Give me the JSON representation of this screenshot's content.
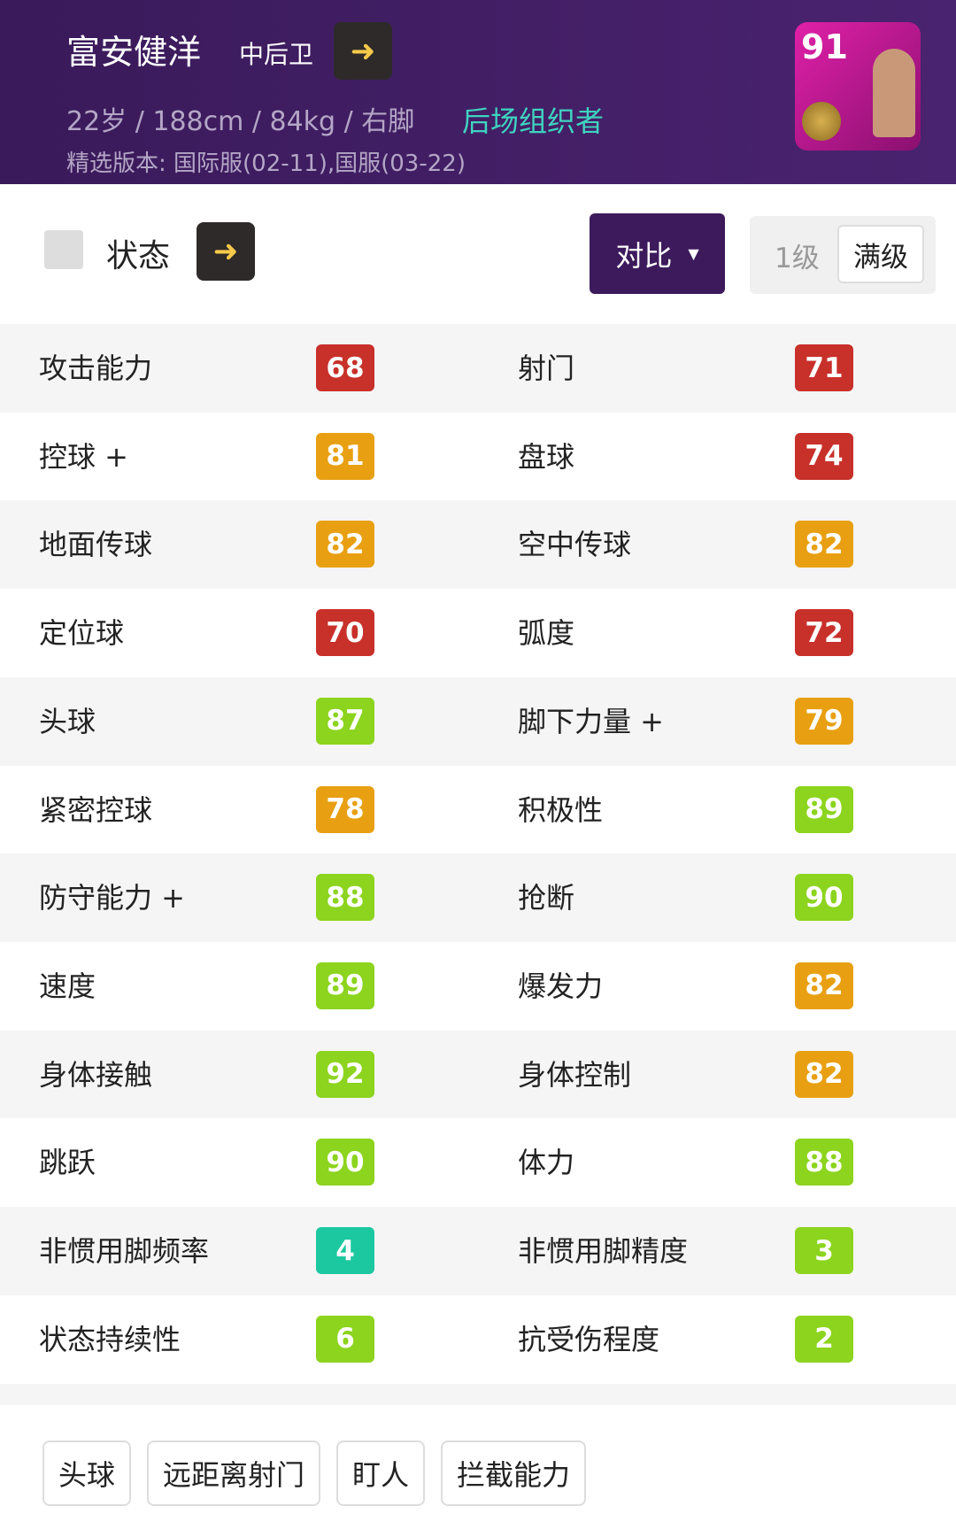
{
  "header": {
    "name": "富安健洋",
    "position": "中后卫",
    "info": "22岁 / 188cm / 84kg / 右脚",
    "role": "后场组织者",
    "version": "精选版本: 国际服(02-11),国服(03-22)",
    "rating": "91"
  },
  "toolbar": {
    "title": "状态",
    "compare": "对比",
    "levels": [
      "1级",
      "满级"
    ]
  },
  "stats": [
    [
      {
        "label": "攻击能力",
        "value": "68",
        "color": "#c8302a"
      },
      {
        "label": "射门",
        "value": "71",
        "color": "#c8302a"
      }
    ],
    [
      {
        "label": "控球 +",
        "value": "81",
        "color": "#e8a012"
      },
      {
        "label": "盘球",
        "value": "74",
        "color": "#c8302a"
      }
    ],
    [
      {
        "label": "地面传球",
        "value": "82",
        "color": "#e8a012"
      },
      {
        "label": "空中传球",
        "value": "82",
        "color": "#e8a012"
      }
    ],
    [
      {
        "label": "定位球",
        "value": "70",
        "color": "#c8302a"
      },
      {
        "label": "弧度",
        "value": "72",
        "color": "#c8302a"
      }
    ],
    [
      {
        "label": "头球",
        "value": "87",
        "color": "#8cd41e"
      },
      {
        "label": "脚下力量 +",
        "value": "79",
        "color": "#e8a012"
      }
    ],
    [
      {
        "label": "紧密控球",
        "value": "78",
        "color": "#e8a012"
      },
      {
        "label": "积极性",
        "value": "89",
        "color": "#8cd41e"
      }
    ],
    [
      {
        "label": "防守能力 +",
        "value": "88",
        "color": "#8cd41e"
      },
      {
        "label": "抢断",
        "value": "90",
        "color": "#8cd41e"
      }
    ],
    [
      {
        "label": "速度",
        "value": "89",
        "color": "#8cd41e"
      },
      {
        "label": "爆发力",
        "value": "82",
        "color": "#e8a012"
      }
    ],
    [
      {
        "label": "身体接触",
        "value": "92",
        "color": "#8cd41e"
      },
      {
        "label": "身体控制",
        "value": "82",
        "color": "#e8a012"
      }
    ],
    [
      {
        "label": "跳跃",
        "value": "90",
        "color": "#8cd41e"
      },
      {
        "label": "体力",
        "value": "88",
        "color": "#8cd41e"
      }
    ],
    [
      {
        "label": "非惯用脚频率",
        "value": "4",
        "color": "#1cc8a0"
      },
      {
        "label": "非惯用脚精度",
        "value": "3",
        "color": "#8cd41e"
      }
    ],
    [
      {
        "label": "状态持续性",
        "value": "6",
        "color": "#8cd41e"
      },
      {
        "label": "抗受伤程度",
        "value": "2",
        "color": "#8cd41e"
      }
    ]
  ],
  "tags": [
    "头球",
    "远距离射门",
    "盯人",
    "拦截能力"
  ]
}
